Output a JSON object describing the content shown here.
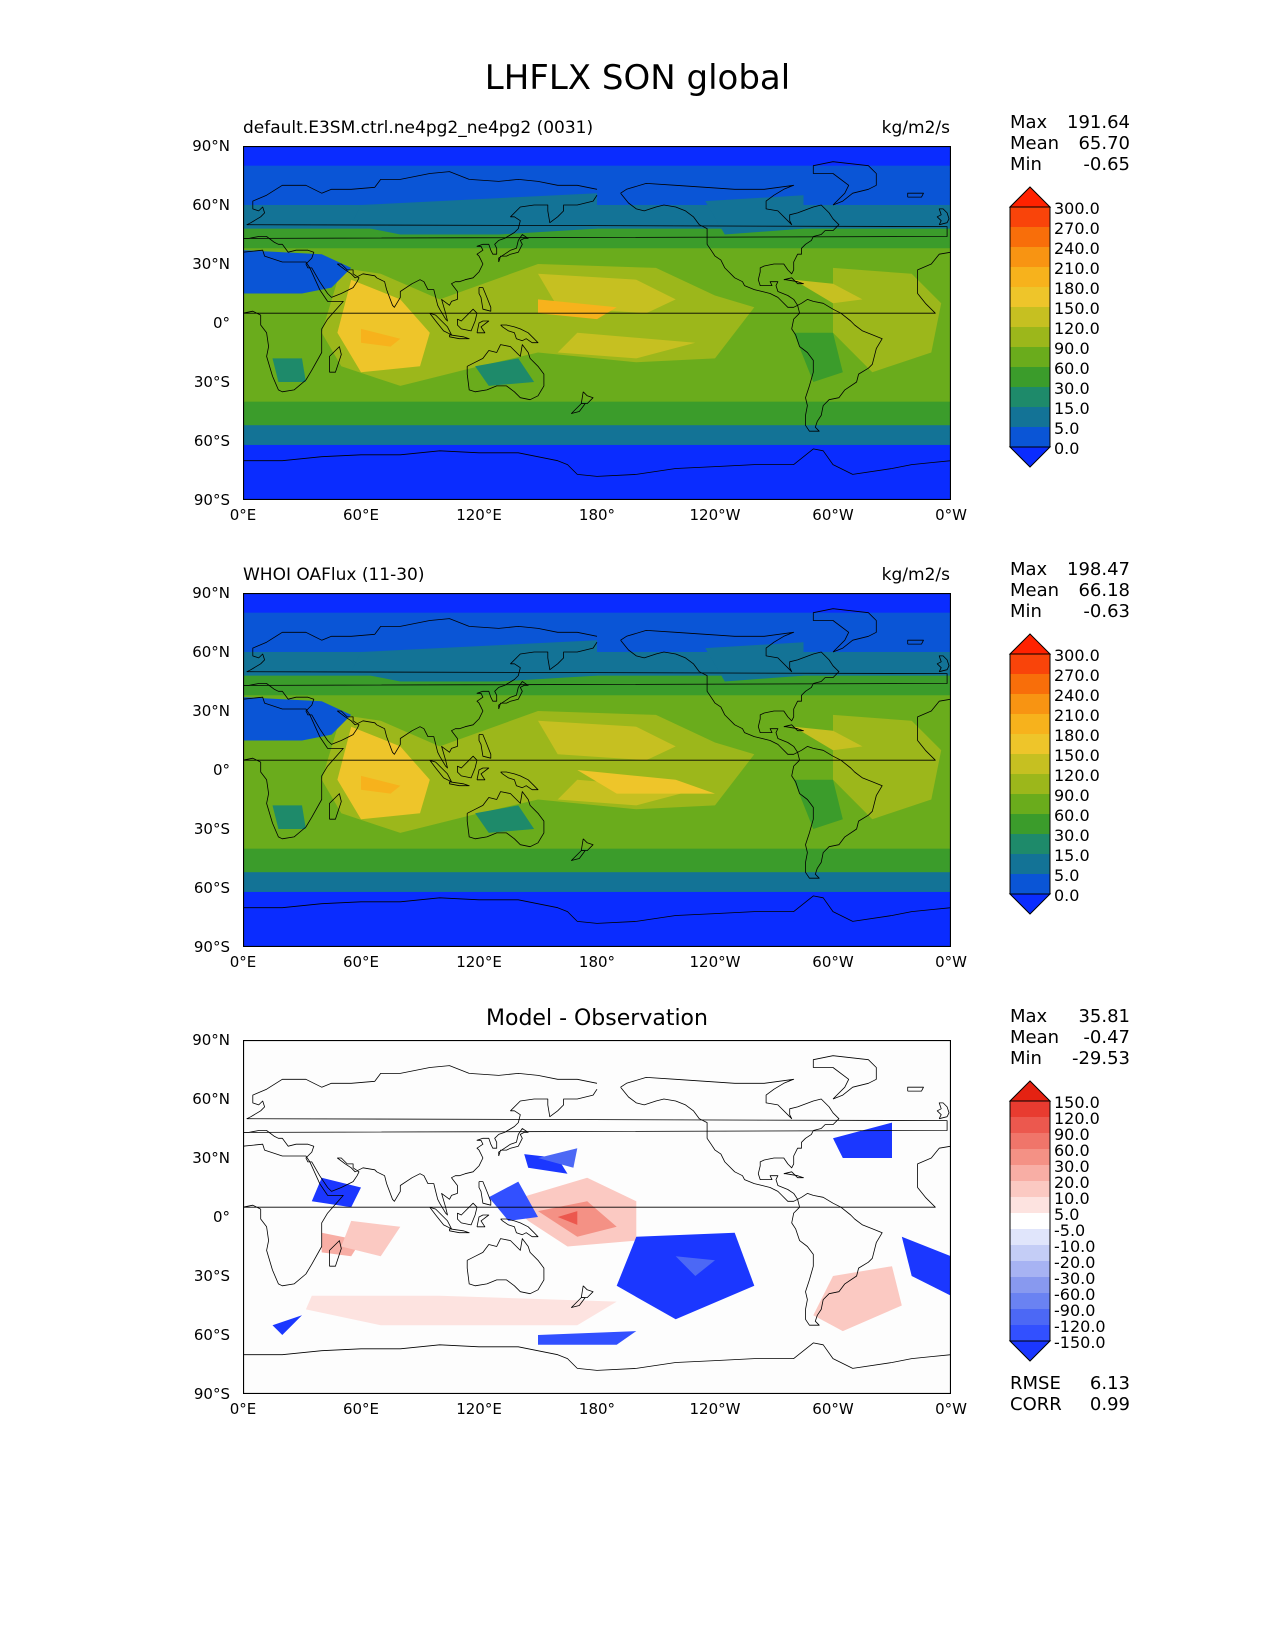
{
  "figure": {
    "title": "LHFLX SON global"
  },
  "panels": [
    {
      "title": "default.E3SM.ctrl.ne4pg2_ne4pg2 (0031)",
      "units": "kg/m2/s",
      "stats": {
        "max_label": "Max",
        "max": "191.64",
        "mean_label": "Mean",
        "mean": "65.70",
        "min_label": "Min",
        "min": "-0.65"
      },
      "colorbar_ticks": [
        "300.0",
        "270.0",
        "240.0",
        "210.0",
        "180.0",
        "150.0",
        "120.0",
        "90.0",
        "60.0",
        "30.0",
        "15.0",
        "5.0",
        "0.0"
      ]
    },
    {
      "title": "WHOI OAFlux (11-30)",
      "units": "kg/m2/s",
      "stats": {
        "max_label": "Max",
        "max": "198.47",
        "mean_label": "Mean",
        "mean": "66.18",
        "min_label": "Min",
        "min": "-0.63"
      },
      "colorbar_ticks": [
        "300.0",
        "270.0",
        "240.0",
        "210.0",
        "180.0",
        "150.0",
        "120.0",
        "90.0",
        "60.0",
        "30.0",
        "15.0",
        "5.0",
        "0.0"
      ]
    },
    {
      "title": "Model - Observation",
      "stats": {
        "max_label": "Max",
        "max": "35.81",
        "mean_label": "Mean",
        "mean": "-0.47",
        "min_label": "Min",
        "min": "-29.53"
      },
      "colorbar_ticks": [
        "150.0",
        "120.0",
        "90.0",
        "60.0",
        "30.0",
        "20.0",
        "10.0",
        "5.0",
        "-5.0",
        "-10.0",
        "-20.0",
        "-30.0",
        "-60.0",
        "-90.0",
        "-120.0",
        "-150.0"
      ],
      "metrics": {
        "rmse_label": "RMSE",
        "rmse": "6.13",
        "corr_label": "CORR",
        "corr": "0.99"
      }
    }
  ],
  "axes": {
    "lat_ticks": [
      "90°N",
      "60°N",
      "30°N",
      "0°",
      "30°S",
      "60°S",
      "90°S"
    ],
    "lon_ticks": [
      "0°E",
      "60°E",
      "120°E",
      "180°",
      "120°W",
      "60°W",
      "0°W"
    ]
  },
  "colors": {
    "field": [
      "#ffffff",
      "#0a2cff",
      "#0a55d6",
      "#137396",
      "#1e8a6a",
      "#3b9c2b",
      "#6aac1c",
      "#9cb71b",
      "#c6c021",
      "#eec52a",
      "#f7b21c",
      "#f89412",
      "#f86e0a",
      "#f9440a",
      "#ff2200"
    ],
    "diff_neg": [
      "#1b37ff",
      "#3250ff",
      "#4c68f5",
      "#6a82f2",
      "#8899ef",
      "#a7b3f3",
      "#c4cdf6",
      "#e0e5fb"
    ],
    "diff_pos": [
      "#fde3e0",
      "#fbc9c2",
      "#f8aea5",
      "#f49185",
      "#f0756a",
      "#ec584e",
      "#e83b30",
      "#e42212"
    ]
  }
}
